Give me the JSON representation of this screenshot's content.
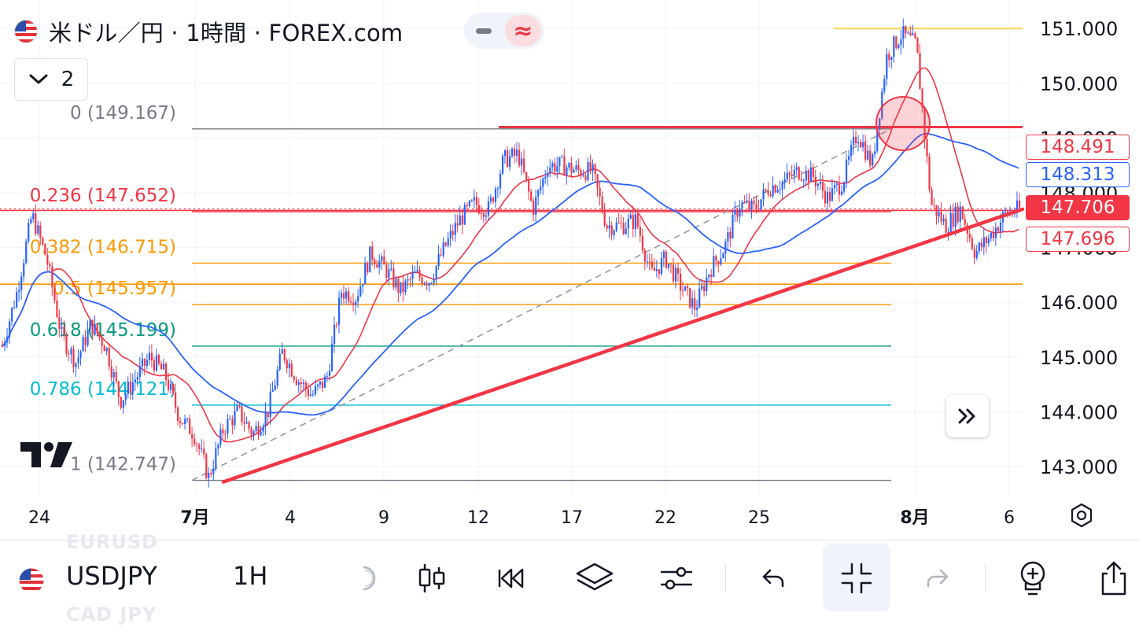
{
  "header": {
    "title": "米ドル／円 · 1時間 · FOREX.com",
    "flag_icon": "us-flag-icon",
    "minimize_icon": "minus-icon",
    "approx_icon": "≈",
    "legend_toggle_count": "2"
  },
  "colors": {
    "bull": "#2962ff",
    "bear": "#f23645",
    "ma_red": "#f23645",
    "ma_blue": "#2962ff",
    "fib_gray": "#787b86",
    "fib_red": "#f23645",
    "fib_orange": "#ff9800",
    "fib_green": "#089981",
    "fib_cyan": "#00bcd4",
    "horizontal_line": "#f23645",
    "trendline": "#f23645",
    "top_line": "#ffd54f"
  },
  "chart_data": {
    "type": "candlestick",
    "symbol": "USDJPY",
    "interval": "1H",
    "ylim": [
      142.45,
      151.35
    ],
    "y_ticks": [
      "151.000",
      "150.000",
      "149.000",
      "148.000",
      "147.000",
      "146.000",
      "145.000",
      "144.000",
      "143.000"
    ],
    "x_tick_labels": [
      "24",
      "7月",
      "4",
      "9",
      "12",
      "17",
      "22",
      "25",
      "8月",
      "6"
    ],
    "price_badges": [
      {
        "label": "148.491",
        "style": "outline-red"
      },
      {
        "label": "148.313",
        "style": "outline-blue"
      },
      {
        "label": "147.706",
        "style": "filled-red"
      },
      {
        "label": "147.696",
        "style": "outline-red"
      }
    ],
    "fib_levels": [
      {
        "label": "0 (149.167)",
        "ratio": 0,
        "price": 149.167
      },
      {
        "label": "0.236 (147.652)",
        "ratio": 0.236,
        "price": 147.652
      },
      {
        "label": "0.382 (146.715)",
        "ratio": 0.382,
        "price": 146.715
      },
      {
        "label": "0.5 (145.957)",
        "ratio": 0.5,
        "price": 145.957
      },
      {
        "label": "0.618 (145.199)",
        "ratio": 0.618,
        "price": 145.199
      },
      {
        "label": "0.786 (144.121)",
        "ratio": 0.786,
        "price": 144.121
      },
      {
        "label": "1 (142.747)",
        "ratio": 1,
        "price": 142.747
      }
    ],
    "resistance_line_price": 149.2,
    "top_line_price": 151.0,
    "dotted_price": 147.706,
    "orange_line_price": 146.33,
    "trendline": {
      "from_price": 142.72,
      "to_price": 147.7
    },
    "price_path": [
      145.2,
      146.2,
      147.6,
      146.8,
      145.4,
      144.9,
      145.6,
      145.2,
      144.2,
      144.6,
      145.0,
      144.7,
      143.9,
      143.6,
      142.8,
      143.7,
      144.0,
      143.6,
      144.0,
      145.1,
      144.6,
      144.3,
      144.6,
      146.2,
      146.1,
      146.9,
      146.6,
      146.2,
      146.5,
      146.4,
      147.0,
      147.5,
      147.8,
      147.7,
      148.6,
      148.7,
      147.7,
      148.5,
      148.5,
      148.4,
      148.4,
      147.4,
      147.4,
      147.5,
      146.5,
      146.8,
      146.3,
      145.9,
      146.6,
      147.0,
      147.8,
      147.7,
      148.1,
      148.2,
      148.4,
      148.3,
      147.9,
      148.2,
      149.1,
      148.5,
      150.5,
      150.9,
      150.7,
      147.8,
      147.4,
      147.7,
      146.9,
      147.2,
      147.6,
      147.7
    ]
  },
  "toolbar": {
    "symbol": "USDJPY",
    "interval": "1H",
    "ghost_above": "EURUSD",
    "ghost_below": "CAD JPY",
    "icons": [
      "partial-icon",
      "candles-icon",
      "replay-icon",
      "layers-icon",
      "indicators-icon",
      "undo-icon",
      "collapse-icon",
      "redo-icon",
      "alert-add-icon",
      "share-icon"
    ]
  }
}
